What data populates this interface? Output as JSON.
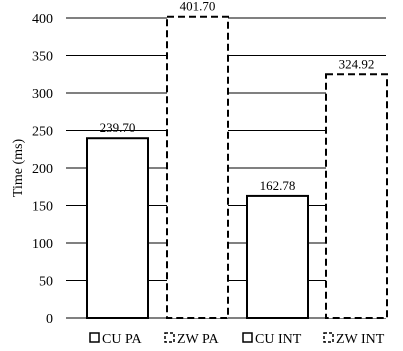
{
  "chart_data": {
    "type": "bar",
    "ylabel": "Time (ms)",
    "xlabel": "",
    "ylim": [
      0,
      400
    ],
    "yticks": [
      "0",
      "50",
      "100",
      "150",
      "200",
      "250",
      "300",
      "350",
      "400"
    ],
    "grid": true,
    "legend_position": "bottom",
    "series": [
      {
        "name": "CU PA",
        "value": 239.7,
        "label": "239.70",
        "border_style": "solid"
      },
      {
        "name": "ZW PA",
        "value": 401.7,
        "label": "401.70",
        "border_style": "dashed"
      },
      {
        "name": "CU INT",
        "value": 162.78,
        "label": "162.78",
        "border_style": "solid"
      },
      {
        "name": "ZW INT",
        "value": 324.92,
        "label": "324.92",
        "border_style": "dashed"
      }
    ]
  }
}
